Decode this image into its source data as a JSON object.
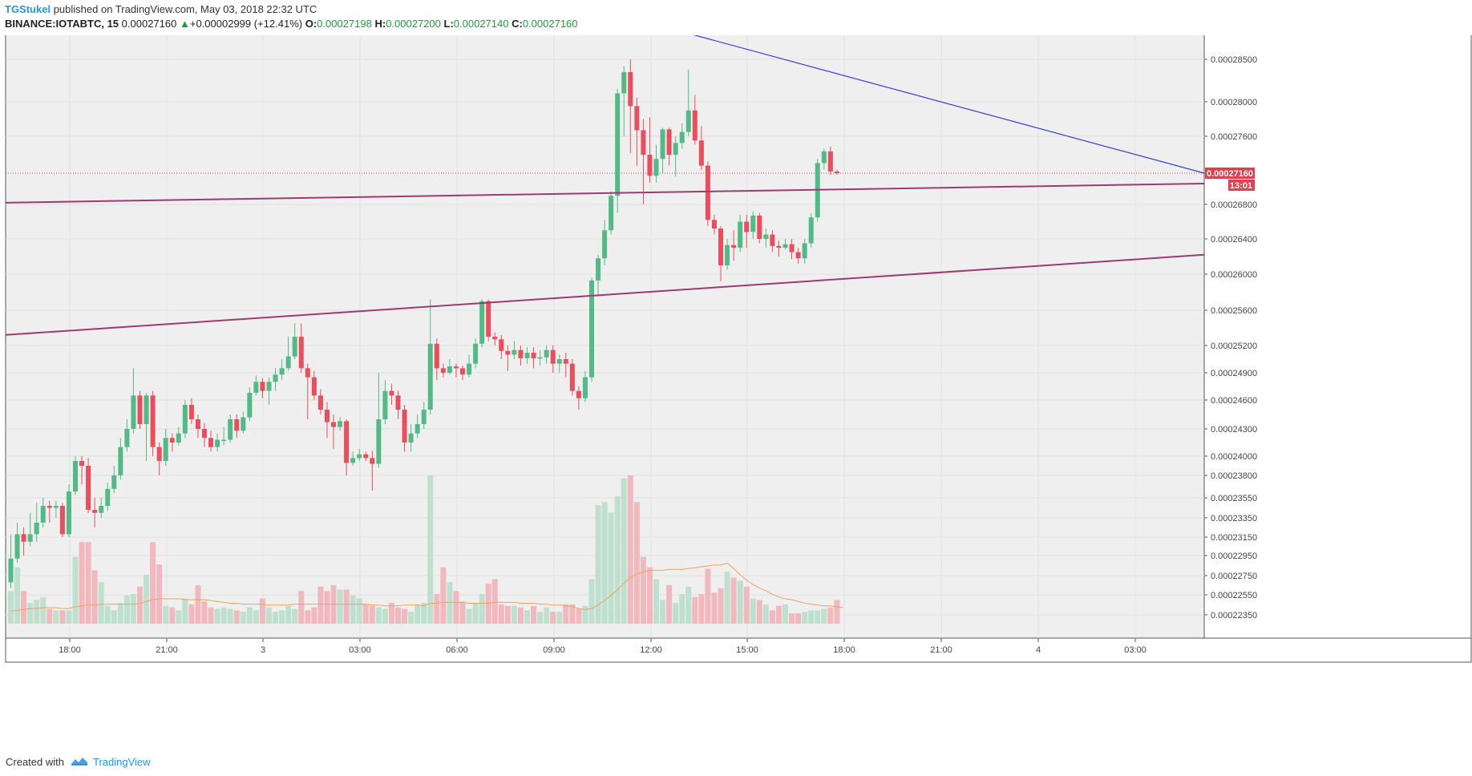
{
  "header": {
    "author": "TGStukel",
    "published_text": "published on TradingView.com, May 03, 2018 22:32 UTC",
    "symbol": "BINANCE:IOTABTC, 15",
    "last": "0.00027160",
    "change_arrow": "▲",
    "change": "+0.00002999 (+12.41%)",
    "o_label": "O:",
    "o_value": "0.00027198",
    "h_label": "H:",
    "h_value": "0.00027200",
    "l_label": "L:",
    "l_value": "0.00027140",
    "c_label": "C:",
    "c_value": "0.00027160"
  },
  "footer": {
    "created_with": "Created with",
    "brand": "TradingView",
    "logo_icon": "tradingview-logo-icon"
  },
  "colors": {
    "up": "#53b987",
    "down": "#eb4d5c",
    "vol_up": "#bfe0cf",
    "vol_down": "#f1b8be",
    "trend_blue": "#3b3bdb",
    "trend_purple": "#9c3a72",
    "vol_ma": "#f5a05a",
    "price_tag": "#e0404e",
    "plot_bg": "#efefef"
  },
  "chart_data": {
    "type": "candlestick",
    "title": "BINANCE:IOTABTC, 15",
    "y_axis_ticks": [
      "0.00028500",
      "0.00028000",
      "0.00027600",
      "0.00027160",
      "0.00026800",
      "0.00026400",
      "0.00026000",
      "0.00025600",
      "0.00025200",
      "0.00024900",
      "0.00024600",
      "0.00024300",
      "0.00024000",
      "0.00023800",
      "0.00023550",
      "0.00023350",
      "0.00023150",
      "0.00022950",
      "0.00022750",
      "0.00022550",
      "0.00022350"
    ],
    "x_axis_ticks": [
      "18:00",
      "21:00",
      "3",
      "03:00",
      "06:00",
      "09:00",
      "12:00",
      "15:00",
      "18:00",
      "21:00",
      "4",
      "03:00"
    ],
    "last_price_label": "0.00027160",
    "countdown_label": "13:01",
    "trendlines": [
      {
        "name": "descending resistance",
        "color": "blue"
      },
      {
        "name": "upper channel",
        "color": "purple"
      },
      {
        "name": "lower channel",
        "color": "purple"
      }
    ],
    "candles": [
      [
        0.0002268,
        0.0002292,
        0.0002318,
        0.0002262
      ],
      [
        0.0002292,
        0.0002318,
        0.000233,
        0.0002288
      ],
      [
        0.0002318,
        0.000231,
        0.0002325,
        0.0002295
      ],
      [
        0.000231,
        0.0002318,
        0.000234,
        0.0002305
      ],
      [
        0.0002318,
        0.000233,
        0.000235,
        0.000231
      ],
      [
        0.000233,
        0.0002347,
        0.0002355,
        0.0002325
      ],
      [
        0.0002347,
        0.0002345,
        0.0002352,
        0.000233
      ],
      [
        0.0002345,
        0.0002347,
        0.0002352,
        0.0002335
      ],
      [
        0.0002347,
        0.0002318,
        0.000235,
        0.0002315
      ],
      [
        0.0002318,
        0.0002362,
        0.000237,
        0.0002315
      ],
      [
        0.0002362,
        0.0002395,
        0.00024,
        0.0002358
      ],
      [
        0.0002395,
        0.000239,
        0.00024,
        0.000237
      ],
      [
        0.000239,
        0.0002343,
        0.0002398,
        0.000234
      ],
      [
        0.0002343,
        0.000234,
        0.0002355,
        0.0002325
      ],
      [
        0.000234,
        0.0002347,
        0.0002355,
        0.0002335
      ],
      [
        0.0002347,
        0.0002365,
        0.0002372,
        0.0002342
      ],
      [
        0.0002365,
        0.000238,
        0.000239,
        0.000236
      ],
      [
        0.000238,
        0.000241,
        0.000242,
        0.0002375
      ],
      [
        0.000241,
        0.000243,
        0.000244,
        0.0002405
      ],
      [
        0.000243,
        0.0002465,
        0.0002495,
        0.0002425
      ],
      [
        0.0002465,
        0.0002435,
        0.000247,
        0.000243
      ],
      [
        0.0002435,
        0.0002465,
        0.0002468,
        0.0002395
      ],
      [
        0.0002465,
        0.000241,
        0.000247,
        0.00024
      ],
      [
        0.000241,
        0.0002395,
        0.0002415,
        0.000238
      ],
      [
        0.0002395,
        0.000242,
        0.000243,
        0.000239
      ],
      [
        0.000242,
        0.0002415,
        0.0002425,
        0.0002405
      ],
      [
        0.0002415,
        0.0002425,
        0.0002432,
        0.0002412
      ],
      [
        0.0002425,
        0.0002455,
        0.000246,
        0.000242
      ],
      [
        0.0002455,
        0.000244,
        0.0002462,
        0.0002435
      ],
      [
        0.000244,
        0.000243,
        0.0002445,
        0.000242
      ],
      [
        0.000243,
        0.000242,
        0.0002436,
        0.000241
      ],
      [
        0.000242,
        0.000241,
        0.0002428,
        0.0002405
      ],
      [
        0.000241,
        0.0002418,
        0.0002425,
        0.0002405
      ],
      [
        0.0002418,
        0.0002418,
        0.0002432,
        0.0002412
      ],
      [
        0.0002418,
        0.000244,
        0.0002445,
        0.0002415
      ],
      [
        0.000244,
        0.0002428,
        0.0002445,
        0.000242
      ],
      [
        0.0002428,
        0.0002442,
        0.0002448,
        0.0002425
      ],
      [
        0.0002442,
        0.0002468,
        0.0002474,
        0.0002438
      ],
      [
        0.0002468,
        0.000248,
        0.0002487,
        0.0002465
      ],
      [
        0.000248,
        0.000247,
        0.0002484,
        0.0002462
      ],
      [
        0.000247,
        0.000248,
        0.0002485,
        0.0002455
      ],
      [
        0.000248,
        0.0002488,
        0.0002495,
        0.000247
      ],
      [
        0.0002488,
        0.0002495,
        0.0002505,
        0.0002482
      ],
      [
        0.0002495,
        0.0002508,
        0.000253,
        0.0002492
      ],
      [
        0.0002508,
        0.000253,
        0.0002545,
        0.0002505
      ],
      [
        0.000253,
        0.0002495,
        0.0002545,
        0.000249
      ],
      [
        0.0002495,
        0.0002485,
        0.00025,
        0.000244
      ],
      [
        0.0002485,
        0.0002465,
        0.0002492,
        0.000246
      ],
      [
        0.0002465,
        0.000245,
        0.0002472,
        0.0002445
      ],
      [
        0.000245,
        0.0002437,
        0.0002458,
        0.000242
      ],
      [
        0.0002437,
        0.0002432,
        0.0002445,
        0.0002408
      ],
      [
        0.0002432,
        0.0002438,
        0.0002442,
        0.0002428
      ],
      [
        0.0002438,
        0.0002393,
        0.000244,
        0.000238
      ],
      [
        0.0002393,
        0.0002398,
        0.0002405,
        0.000239
      ],
      [
        0.0002398,
        0.0002402,
        0.0002408,
        0.0002395
      ],
      [
        0.0002402,
        0.0002398,
        0.0002405,
        0.0002395
      ],
      [
        0.0002398,
        0.0002392,
        0.0002406,
        0.0002363
      ],
      [
        0.0002392,
        0.000244,
        0.000249,
        0.0002388
      ],
      [
        0.000244,
        0.000247,
        0.0002482,
        0.0002435
      ],
      [
        0.000247,
        0.0002465,
        0.0002478,
        0.0002455
      ],
      [
        0.0002465,
        0.000245,
        0.000247,
        0.000244
      ],
      [
        0.000245,
        0.0002415,
        0.0002455,
        0.0002405
      ],
      [
        0.0002415,
        0.0002425,
        0.0002435,
        0.0002405
      ],
      [
        0.0002425,
        0.0002435,
        0.0002445,
        0.000242
      ],
      [
        0.0002435,
        0.000245,
        0.0002458,
        0.000243
      ],
      [
        0.000245,
        0.0002522,
        0.0002572,
        0.0002445
      ],
      [
        0.0002522,
        0.0002495,
        0.0002528,
        0.0002482
      ],
      [
        0.0002495,
        0.000249,
        0.00025,
        0.0002485
      ],
      [
        0.000249,
        0.0002497,
        0.0002505,
        0.0002488
      ],
      [
        0.0002497,
        0.0002495,
        0.00025,
        0.0002485
      ],
      [
        0.0002495,
        0.0002488,
        0.0002498,
        0.0002482
      ],
      [
        0.0002488,
        0.00025,
        0.000251,
        0.0002485
      ],
      [
        0.00025,
        0.0002522,
        0.0002528,
        0.0002495
      ],
      [
        0.0002522,
        0.000257,
        0.0002572,
        0.0002518
      ],
      [
        0.000257,
        0.000253,
        0.0002572,
        0.0002525
      ],
      [
        0.000253,
        0.0002527,
        0.0002535,
        0.000252
      ],
      [
        0.0002527,
        0.0002514,
        0.0002532,
        0.0002505
      ],
      [
        0.0002514,
        0.000251,
        0.000252,
        0.0002492
      ],
      [
        0.000251,
        0.0002515,
        0.0002525,
        0.0002505
      ],
      [
        0.0002515,
        0.0002506,
        0.000252,
        0.0002498
      ],
      [
        0.0002506,
        0.0002512,
        0.0002518,
        0.00025
      ],
      [
        0.0002512,
        0.0002506,
        0.0002518,
        0.0002495
      ],
      [
        0.0002506,
        0.0002507,
        0.0002515,
        0.0002498
      ],
      [
        0.0002507,
        0.0002515,
        0.000252,
        0.00025
      ],
      [
        0.0002515,
        0.00025,
        0.000252,
        0.000249
      ],
      [
        0.00025,
        0.0002505,
        0.000251,
        0.000249
      ],
      [
        0.0002505,
        0.00025,
        0.0002512,
        0.0002485
      ],
      [
        0.00025,
        0.000247,
        0.0002505,
        0.0002465
      ],
      [
        0.000247,
        0.0002462,
        0.0002475,
        0.000245
      ],
      [
        0.0002462,
        0.0002485,
        0.0002492,
        0.0002458
      ],
      [
        0.0002485,
        0.0002593,
        0.0002596,
        0.000248
      ],
      [
        0.0002593,
        0.0002618,
        0.0002622,
        0.0002575
      ],
      [
        0.0002618,
        0.000265,
        0.0002662,
        0.000261
      ],
      [
        0.000265,
        0.000269,
        0.0002695,
        0.0002645
      ],
      [
        0.000269,
        0.000281,
        0.0002815,
        0.000267
      ],
      [
        0.000281,
        0.0002835,
        0.0002842,
        0.000276
      ],
      [
        0.0002835,
        0.0002795,
        0.000285,
        0.000274
      ],
      [
        0.0002795,
        0.0002767,
        0.0002805,
        0.0002725
      ],
      [
        0.0002767,
        0.0002738,
        0.000278,
        0.000268
      ],
      [
        0.0002738,
        0.0002713,
        0.0002782,
        0.0002705
      ],
      [
        0.0002713,
        0.0002733,
        0.000275,
        0.0002705
      ],
      [
        0.0002733,
        0.0002768,
        0.000277,
        0.0002715
      ],
      [
        0.0002768,
        0.0002738,
        0.000277,
        0.0002725
      ],
      [
        0.0002738,
        0.0002752,
        0.000276,
        0.0002712
      ],
      [
        0.0002752,
        0.0002765,
        0.0002775,
        0.0002745
      ],
      [
        0.0002765,
        0.000279,
        0.0002838,
        0.000276
      ],
      [
        0.000279,
        0.0002755,
        0.0002808,
        0.000275
      ],
      [
        0.0002755,
        0.0002725,
        0.0002772,
        0.000272
      ],
      [
        0.0002725,
        0.0002662,
        0.000273,
        0.0002655
      ],
      [
        0.0002662,
        0.0002652,
        0.0002668,
        0.0002645
      ],
      [
        0.0002652,
        0.000261,
        0.0002655,
        0.0002592
      ],
      [
        0.000261,
        0.0002633,
        0.000264,
        0.0002605
      ],
      [
        0.0002633,
        0.000263,
        0.000265,
        0.0002615
      ],
      [
        0.000263,
        0.000266,
        0.0002668,
        0.0002625
      ],
      [
        0.000266,
        0.0002648,
        0.0002668,
        0.000263
      ],
      [
        0.0002648,
        0.0002667,
        0.0002672,
        0.000264
      ],
      [
        0.0002667,
        0.000264,
        0.000267,
        0.0002635
      ],
      [
        0.000264,
        0.0002645,
        0.0002652,
        0.000263
      ],
      [
        0.0002645,
        0.0002632,
        0.000265,
        0.0002625
      ],
      [
        0.0002632,
        0.000263,
        0.0002638,
        0.000262
      ],
      [
        0.000263,
        0.0002634,
        0.000264,
        0.0002628
      ],
      [
        0.0002634,
        0.0002625,
        0.000264,
        0.0002617
      ],
      [
        0.0002625,
        0.0002618,
        0.000263,
        0.0002612
      ],
      [
        0.0002618,
        0.0002635,
        0.000264,
        0.0002612
      ],
      [
        0.0002635,
        0.0002665,
        0.000267,
        0.000263
      ],
      [
        0.0002665,
        0.0002728,
        0.0002733,
        0.000266
      ],
      [
        0.0002728,
        0.0002742,
        0.0002745,
        0.000272
      ],
      [
        0.0002742,
        0.0002718,
        0.0002748,
        0.0002714
      ],
      [
        0.0002718,
        0.0002716,
        0.000272,
        0.0002714
      ]
    ],
    "volume": [
      22,
      38,
      22,
      14,
      16,
      18,
      10,
      9,
      9,
      9,
      45,
      55,
      55,
      36,
      28,
      12,
      9,
      14,
      19,
      20,
      25,
      33,
      55,
      40,
      12,
      11,
      9,
      17,
      13,
      26,
      15,
      11,
      10,
      11,
      10,
      9,
      8,
      11,
      9,
      17,
      11,
      8,
      9,
      12,
      10,
      22,
      9,
      11,
      25,
      22,
      26,
      23,
      23,
      19,
      17,
      13,
      12,
      11,
      10,
      14,
      11,
      10,
      8,
      13,
      14,
      100,
      20,
      38,
      28,
      22,
      15,
      10,
      14,
      20,
      27,
      30,
      13,
      12,
      12,
      11,
      9,
      12,
      8,
      11,
      8,
      8,
      13,
      13,
      10,
      12,
      30,
      80,
      82,
      75,
      86,
      98,
      100,
      82,
      45,
      38,
      30,
      16,
      26,
      14,
      20,
      25,
      18,
      20,
      37,
      21,
      24,
      35,
      31,
      29,
      25,
      17,
      16,
      13,
      9,
      12,
      13,
      7,
      7,
      8,
      9,
      9,
      10,
      11,
      16,
      22
    ],
    "volume_ma": [
      14,
      15,
      16,
      17,
      17,
      18,
      18,
      18,
      17,
      17,
      19,
      20,
      21,
      21,
      22,
      22,
      22,
      22,
      22,
      22,
      23,
      25,
      27,
      28,
      28,
      28,
      28,
      27,
      27,
      27,
      27,
      26,
      25,
      24,
      23,
      23,
      22,
      22,
      22,
      22,
      21,
      21,
      21,
      21,
      22,
      22,
      22,
      22,
      22,
      22,
      22,
      22,
      22,
      22,
      22,
      22,
      21,
      21,
      20,
      20,
      20,
      21,
      21,
      21,
      20,
      23,
      23,
      24,
      24,
      24,
      24,
      23,
      23,
      23,
      23,
      24,
      24,
      24,
      24,
      23,
      23,
      23,
      22,
      22,
      21,
      21,
      20,
      19,
      17,
      16,
      17,
      21,
      26,
      32,
      38,
      45,
      52,
      56,
      58,
      60,
      60,
      60,
      61,
      61,
      61,
      62,
      63,
      64,
      65,
      66,
      66,
      68,
      62,
      55,
      49,
      44,
      40,
      37,
      33,
      30,
      28,
      27,
      25,
      23,
      22,
      21,
      20,
      20,
      19,
      18
    ]
  }
}
